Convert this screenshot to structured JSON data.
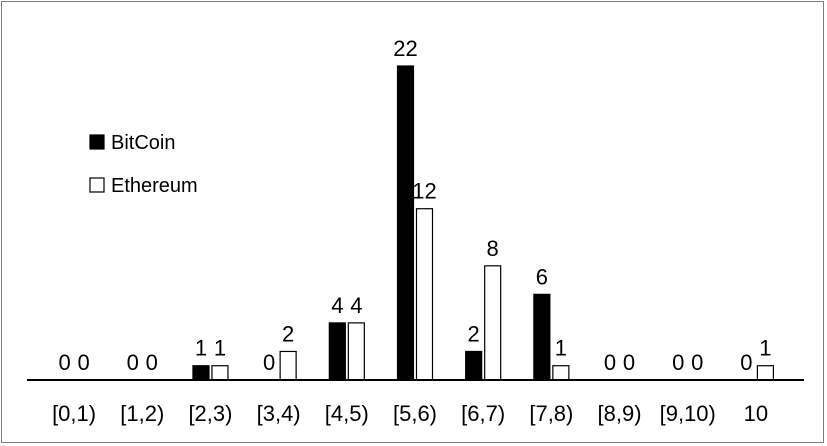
{
  "chart_data": {
    "type": "bar",
    "categories": [
      "[0,1)",
      "[1,2)",
      "[2,3)",
      "[3,4)",
      "[4,5)",
      "[5,6)",
      "[6,7)",
      "[7,8)",
      "[8,9)",
      "[9,10)",
      "10"
    ],
    "series": [
      {
        "name": "BitCoin",
        "values": [
          0,
          0,
          1,
          0,
          4,
          22,
          2,
          6,
          0,
          0,
          0
        ],
        "color": "#000000"
      },
      {
        "name": "Ethereum",
        "values": [
          0,
          0,
          1,
          2,
          4,
          12,
          8,
          1,
          0,
          0,
          1
        ],
        "color": "#ffffff"
      }
    ],
    "title": "",
    "xlabel": "",
    "ylabel": "",
    "ylim": [
      0,
      22
    ],
    "grid": false,
    "legend": "left",
    "data_labels": true
  }
}
